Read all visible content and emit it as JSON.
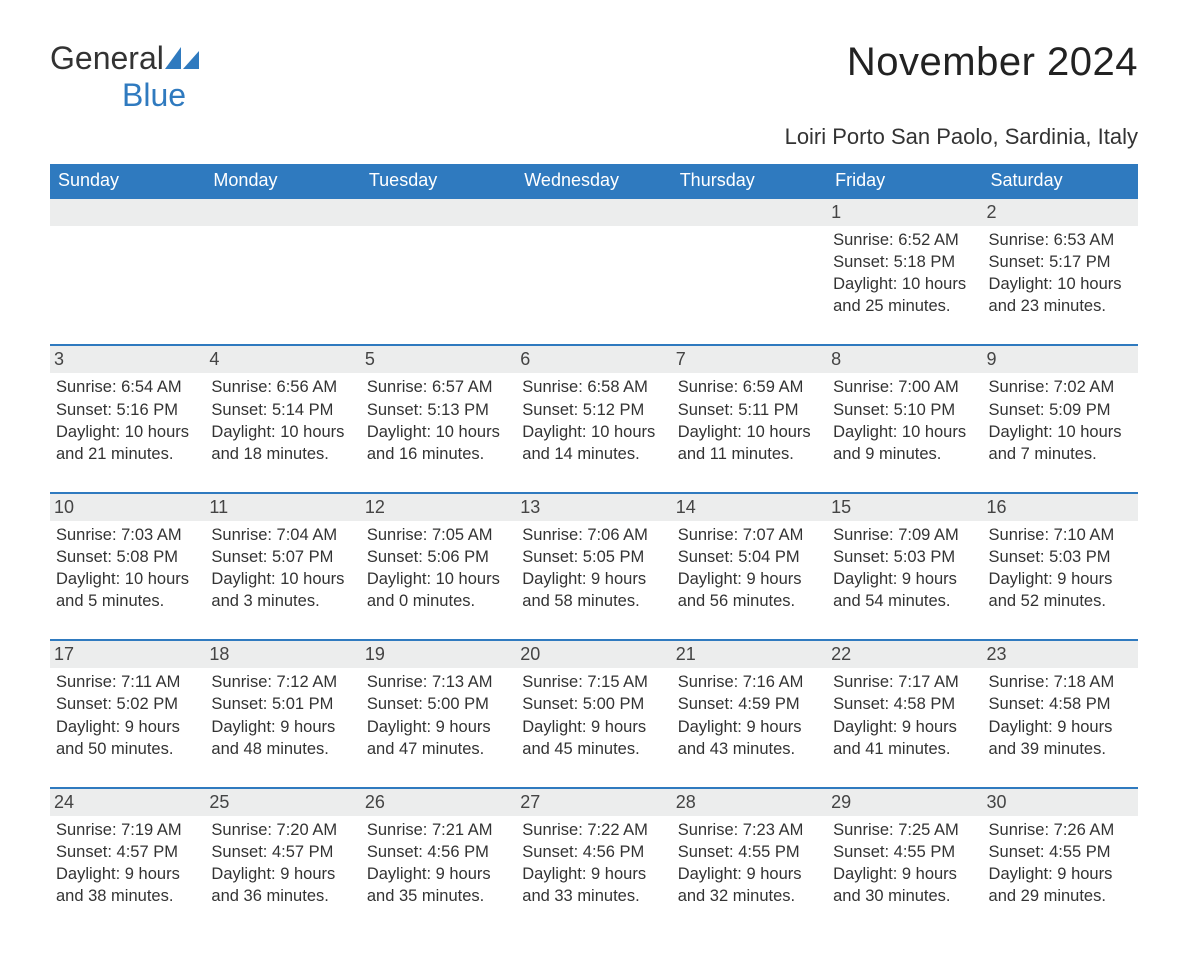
{
  "logo": {
    "text1": "General",
    "text2": "Blue"
  },
  "title": "November 2024",
  "location": "Loiri Porto San Paolo, Sardinia, Italy",
  "colors": {
    "header_bg": "#2f7abf",
    "header_text": "#ffffff",
    "daynum_bg": "#eceded",
    "body_text": "#333333",
    "logo_blue": "#2f7abf"
  },
  "typography": {
    "month_title_fontsize": 40,
    "location_fontsize": 22,
    "dayheader_fontsize": 18,
    "daynum_fontsize": 18,
    "details_fontsize": 16.5,
    "logo_fontsize": 32
  },
  "layout": {
    "columns": 7,
    "rows": 5
  },
  "day_names": [
    "Sunday",
    "Monday",
    "Tuesday",
    "Wednesday",
    "Thursday",
    "Friday",
    "Saturday"
  ],
  "weeks": [
    [
      {
        "empty": true
      },
      {
        "empty": true
      },
      {
        "empty": true
      },
      {
        "empty": true
      },
      {
        "empty": true
      },
      {
        "day": "1",
        "sunrise": "Sunrise: 6:52 AM",
        "sunset": "Sunset: 5:18 PM",
        "daylight1": "Daylight: 10 hours",
        "daylight2": "and 25 minutes."
      },
      {
        "day": "2",
        "sunrise": "Sunrise: 6:53 AM",
        "sunset": "Sunset: 5:17 PM",
        "daylight1": "Daylight: 10 hours",
        "daylight2": "and 23 minutes."
      }
    ],
    [
      {
        "day": "3",
        "sunrise": "Sunrise: 6:54 AM",
        "sunset": "Sunset: 5:16 PM",
        "daylight1": "Daylight: 10 hours",
        "daylight2": "and 21 minutes."
      },
      {
        "day": "4",
        "sunrise": "Sunrise: 6:56 AM",
        "sunset": "Sunset: 5:14 PM",
        "daylight1": "Daylight: 10 hours",
        "daylight2": "and 18 minutes."
      },
      {
        "day": "5",
        "sunrise": "Sunrise: 6:57 AM",
        "sunset": "Sunset: 5:13 PM",
        "daylight1": "Daylight: 10 hours",
        "daylight2": "and 16 minutes."
      },
      {
        "day": "6",
        "sunrise": "Sunrise: 6:58 AM",
        "sunset": "Sunset: 5:12 PM",
        "daylight1": "Daylight: 10 hours",
        "daylight2": "and 14 minutes."
      },
      {
        "day": "7",
        "sunrise": "Sunrise: 6:59 AM",
        "sunset": "Sunset: 5:11 PM",
        "daylight1": "Daylight: 10 hours",
        "daylight2": "and 11 minutes."
      },
      {
        "day": "8",
        "sunrise": "Sunrise: 7:00 AM",
        "sunset": "Sunset: 5:10 PM",
        "daylight1": "Daylight: 10 hours",
        "daylight2": "and 9 minutes."
      },
      {
        "day": "9",
        "sunrise": "Sunrise: 7:02 AM",
        "sunset": "Sunset: 5:09 PM",
        "daylight1": "Daylight: 10 hours",
        "daylight2": "and 7 minutes."
      }
    ],
    [
      {
        "day": "10",
        "sunrise": "Sunrise: 7:03 AM",
        "sunset": "Sunset: 5:08 PM",
        "daylight1": "Daylight: 10 hours",
        "daylight2": "and 5 minutes."
      },
      {
        "day": "11",
        "sunrise": "Sunrise: 7:04 AM",
        "sunset": "Sunset: 5:07 PM",
        "daylight1": "Daylight: 10 hours",
        "daylight2": "and 3 minutes."
      },
      {
        "day": "12",
        "sunrise": "Sunrise: 7:05 AM",
        "sunset": "Sunset: 5:06 PM",
        "daylight1": "Daylight: 10 hours",
        "daylight2": "and 0 minutes."
      },
      {
        "day": "13",
        "sunrise": "Sunrise: 7:06 AM",
        "sunset": "Sunset: 5:05 PM",
        "daylight1": "Daylight: 9 hours",
        "daylight2": "and 58 minutes."
      },
      {
        "day": "14",
        "sunrise": "Sunrise: 7:07 AM",
        "sunset": "Sunset: 5:04 PM",
        "daylight1": "Daylight: 9 hours",
        "daylight2": "and 56 minutes."
      },
      {
        "day": "15",
        "sunrise": "Sunrise: 7:09 AM",
        "sunset": "Sunset: 5:03 PM",
        "daylight1": "Daylight: 9 hours",
        "daylight2": "and 54 minutes."
      },
      {
        "day": "16",
        "sunrise": "Sunrise: 7:10 AM",
        "sunset": "Sunset: 5:03 PM",
        "daylight1": "Daylight: 9 hours",
        "daylight2": "and 52 minutes."
      }
    ],
    [
      {
        "day": "17",
        "sunrise": "Sunrise: 7:11 AM",
        "sunset": "Sunset: 5:02 PM",
        "daylight1": "Daylight: 9 hours",
        "daylight2": "and 50 minutes."
      },
      {
        "day": "18",
        "sunrise": "Sunrise: 7:12 AM",
        "sunset": "Sunset: 5:01 PM",
        "daylight1": "Daylight: 9 hours",
        "daylight2": "and 48 minutes."
      },
      {
        "day": "19",
        "sunrise": "Sunrise: 7:13 AM",
        "sunset": "Sunset: 5:00 PM",
        "daylight1": "Daylight: 9 hours",
        "daylight2": "and 47 minutes."
      },
      {
        "day": "20",
        "sunrise": "Sunrise: 7:15 AM",
        "sunset": "Sunset: 5:00 PM",
        "daylight1": "Daylight: 9 hours",
        "daylight2": "and 45 minutes."
      },
      {
        "day": "21",
        "sunrise": "Sunrise: 7:16 AM",
        "sunset": "Sunset: 4:59 PM",
        "daylight1": "Daylight: 9 hours",
        "daylight2": "and 43 minutes."
      },
      {
        "day": "22",
        "sunrise": "Sunrise: 7:17 AM",
        "sunset": "Sunset: 4:58 PM",
        "daylight1": "Daylight: 9 hours",
        "daylight2": "and 41 minutes."
      },
      {
        "day": "23",
        "sunrise": "Sunrise: 7:18 AM",
        "sunset": "Sunset: 4:58 PM",
        "daylight1": "Daylight: 9 hours",
        "daylight2": "and 39 minutes."
      }
    ],
    [
      {
        "day": "24",
        "sunrise": "Sunrise: 7:19 AM",
        "sunset": "Sunset: 4:57 PM",
        "daylight1": "Daylight: 9 hours",
        "daylight2": "and 38 minutes."
      },
      {
        "day": "25",
        "sunrise": "Sunrise: 7:20 AM",
        "sunset": "Sunset: 4:57 PM",
        "daylight1": "Daylight: 9 hours",
        "daylight2": "and 36 minutes."
      },
      {
        "day": "26",
        "sunrise": "Sunrise: 7:21 AM",
        "sunset": "Sunset: 4:56 PM",
        "daylight1": "Daylight: 9 hours",
        "daylight2": "and 35 minutes."
      },
      {
        "day": "27",
        "sunrise": "Sunrise: 7:22 AM",
        "sunset": "Sunset: 4:56 PM",
        "daylight1": "Daylight: 9 hours",
        "daylight2": "and 33 minutes."
      },
      {
        "day": "28",
        "sunrise": "Sunrise: 7:23 AM",
        "sunset": "Sunset: 4:55 PM",
        "daylight1": "Daylight: 9 hours",
        "daylight2": "and 32 minutes."
      },
      {
        "day": "29",
        "sunrise": "Sunrise: 7:25 AM",
        "sunset": "Sunset: 4:55 PM",
        "daylight1": "Daylight: 9 hours",
        "daylight2": "and 30 minutes."
      },
      {
        "day": "30",
        "sunrise": "Sunrise: 7:26 AM",
        "sunset": "Sunset: 4:55 PM",
        "daylight1": "Daylight: 9 hours",
        "daylight2": "and 29 minutes."
      }
    ]
  ]
}
